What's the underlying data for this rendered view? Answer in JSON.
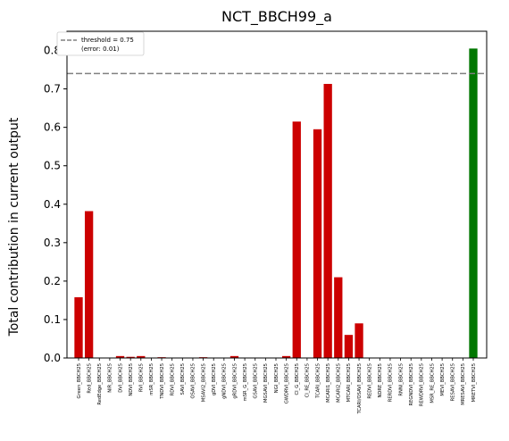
{
  "chart_data": {
    "type": "bar",
    "title": "NCT_BBCH99_a",
    "xlabel": "",
    "ylabel": "Total contribution in current output",
    "ylim": [
      0,
      0.85
    ],
    "yticks": [
      "0.0",
      "0.1",
      "0.2",
      "0.3",
      "0.4",
      "0.5",
      "0.6",
      "0.7",
      "0.8"
    ],
    "grid": false,
    "legend_position": "top-left",
    "legend": {
      "line1": "threshold = 0.75",
      "line2": "(error: 0.01)"
    },
    "threshold": 0.74,
    "bar_color": "#cc0000",
    "highlight_color": "#007700",
    "threshold_color": "#808080",
    "categories": [
      "Green_BBCH25",
      "Red_BBCH25",
      "RedEdge_BBCH25",
      "NIR_BBCH25",
      "DVI_BBCH25",
      "NDVI_BBCH25",
      "RVI_BBCH25",
      "mSR_BBCH25",
      "TNDVI_BBCH25",
      "RDVI_BBCH25",
      "SAVI_BBCH25",
      "OSAVI_BBCH25",
      "MSAVI2_BBCH25",
      "gDVI_BBCH25",
      "gNDVI_BBCH25",
      "gRDVI_BBCH25",
      "mSR_G_BBCH25",
      "GSAVI_BBCH25",
      "MGSAVI_BBCH25",
      "NGI_BBCH25",
      "GWDRVI_BBCH25",
      "CI_G_BBCH25",
      "CI_RE_BBCH25",
      "TCARI_BBCH25",
      "MCARI1_BBCH25",
      "MCARI2_BBCH25",
      "MTCARI_BBCH25",
      "TCARI/OSAVI_BBCH25",
      "REDVI_BBCH25",
      "NDRE_BBCH25",
      "RERDVI_BBCH25",
      "RNNI_BBCH25",
      "REGNDVI_BBCH25",
      "REWDRVI_BBCH25",
      "MSR_RE_BBCH25",
      "MEVI_BBCH25",
      "RESAVI_BBCH25",
      "MRESAVI_BBCH25",
      "MRETVI_BBCH25"
    ],
    "values": [
      0.158,
      0.382,
      0,
      0,
      0.005,
      0.003,
      0.005,
      0,
      0.002,
      0,
      0,
      0,
      0.002,
      0,
      0,
      0.005,
      0,
      0,
      0,
      0,
      0.005,
      0.615,
      0,
      0.595,
      0.713,
      0.21,
      0.06,
      0.09,
      0,
      0,
      0,
      0,
      0,
      0,
      0,
      0,
      0,
      0,
      0.805
    ],
    "highlight_index": 38
  }
}
